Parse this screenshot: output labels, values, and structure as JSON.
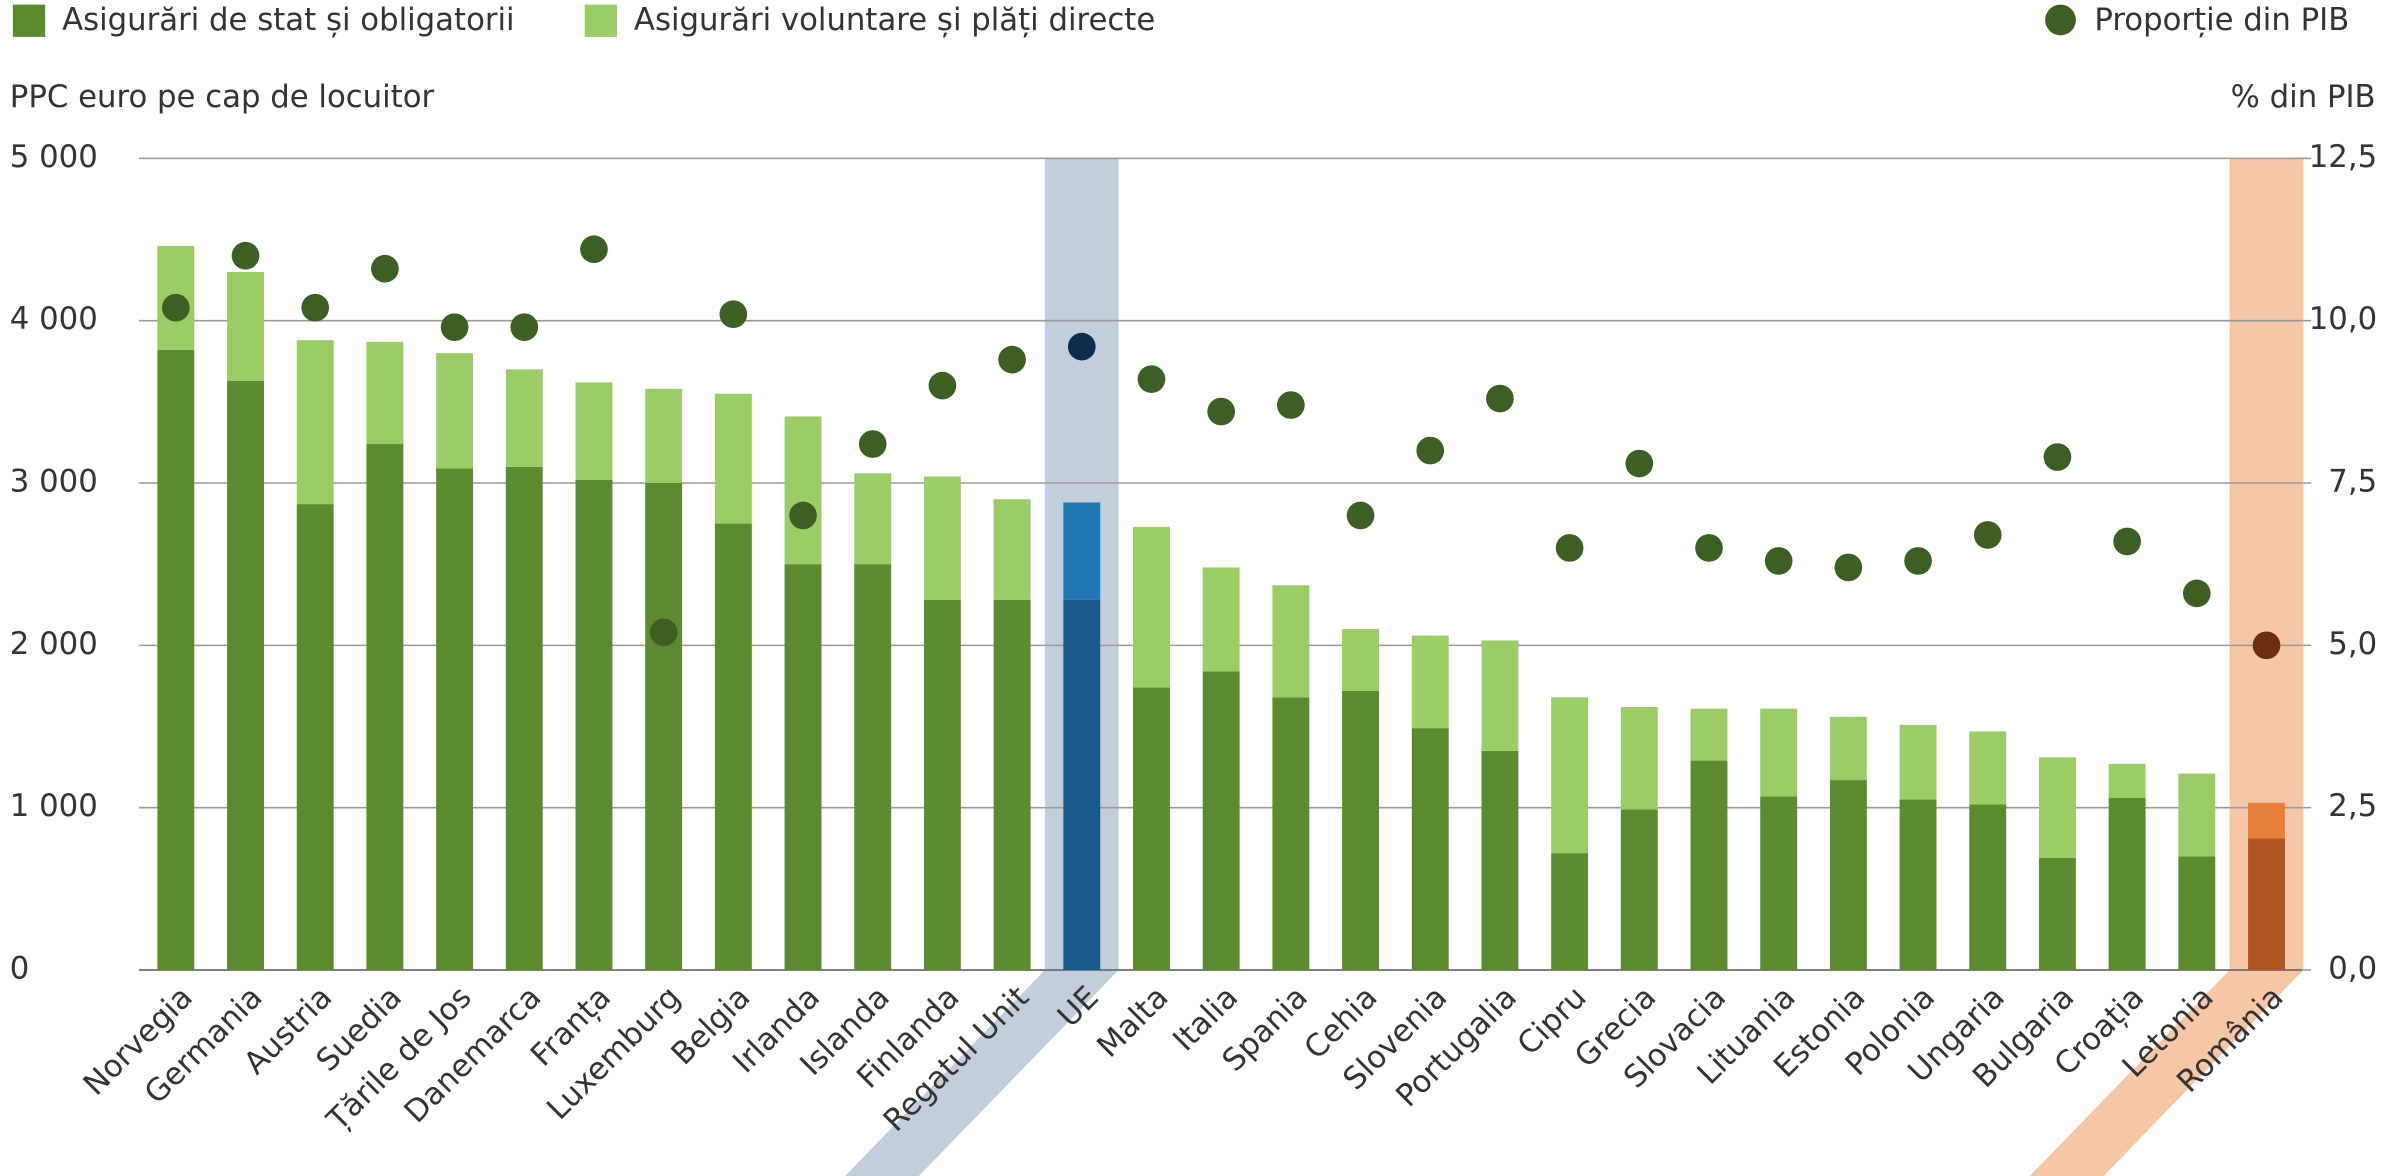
{
  "chart_data": {
    "type": "bar",
    "stacked": true,
    "y_axis_label": "PPC euro pe cap de locuitor",
    "y2_axis_label": "% din PIB",
    "categories": [
      "Norvegia",
      "Germania",
      "Austria",
      "Suedia",
      "Țările de Jos",
      "Danemarca",
      "Franța",
      "Luxemburg",
      "Belgia",
      "Irlanda",
      "Islanda",
      "Finlanda",
      "Regatul Unit",
      "UE",
      "Malta",
      "Italia",
      "Spania",
      "Cehia",
      "Slovenia",
      "Portugalia",
      "Cipru",
      "Grecia",
      "Slovacia",
      "Lituania",
      "Estonia",
      "Polonia",
      "Ungaria",
      "Bulgaria",
      "Croația",
      "Letonia",
      "România"
    ],
    "series": [
      {
        "name": "Asigurări de stat și obligatorii",
        "color": "#5b8a2f",
        "values": [
          3820,
          3630,
          2870,
          3240,
          3090,
          3100,
          3020,
          3000,
          2750,
          2500,
          2500,
          2280,
          2280,
          2280,
          1740,
          1840,
          1680,
          1720,
          1490,
          1350,
          720,
          990,
          1290,
          1070,
          1170,
          1050,
          1020,
          690,
          1060,
          700,
          810
        ]
      },
      {
        "name": "Asigurări voluntare și plăți directe",
        "color": "#9ccc65",
        "values": [
          640,
          670,
          1010,
          630,
          710,
          600,
          600,
          580,
          800,
          910,
          560,
          760,
          620,
          600,
          990,
          640,
          690,
          380,
          570,
          680,
          960,
          630,
          320,
          540,
          390,
          460,
          450,
          620,
          210,
          510,
          220
        ]
      },
      {
        "name": "Proporție din PIB",
        "color": "#3c5f23",
        "type": "scatter",
        "axis": "y2",
        "values": [
          10.2,
          11.0,
          10.2,
          10.8,
          9.9,
          9.9,
          11.1,
          5.2,
          10.1,
          7.0,
          8.1,
          9.0,
          9.4,
          9.6,
          9.1,
          8.6,
          8.7,
          7.0,
          8.0,
          8.8,
          6.5,
          7.8,
          6.5,
          6.3,
          6.2,
          6.3,
          6.7,
          7.9,
          6.6,
          5.8,
          5.0
        ]
      }
    ],
    "highlights": [
      {
        "category": 13,
        "band_color": "#c2cedb",
        "colors": [
          "#1a5a8a",
          "#1f77b4",
          "#0b2e4f"
        ]
      },
      {
        "category": 30,
        "band_color": "#f5c7a6",
        "colors": [
          "#b05522",
          "#e8803a",
          "#6b3010"
        ]
      }
    ],
    "ylim": [
      0,
      5000
    ],
    "yticks": [
      0,
      {
        "value": 1000,
        "label": "1 000"
      },
      {
        "value": 2000,
        "label": "2 000"
      },
      {
        "value": 3000,
        "label": "3 000"
      },
      {
        "value": 4000,
        "label": "4 000"
      },
      {
        "value": 5000,
        "label": "5 000"
      }
    ],
    "y2lim": [
      0,
      12.5
    ],
    "y2ticks": [
      {
        "value": 0,
        "label": "0,0"
      },
      {
        "value": 2.5,
        "label": "2,5"
      },
      {
        "value": 5,
        "label": "5,0"
      },
      {
        "value": 7.5,
        "label": "7,5"
      },
      {
        "value": 10,
        "label": "10,0"
      },
      {
        "value": 12.5,
        "label": "12,5"
      }
    ],
    "grid": true,
    "legend": "top"
  }
}
